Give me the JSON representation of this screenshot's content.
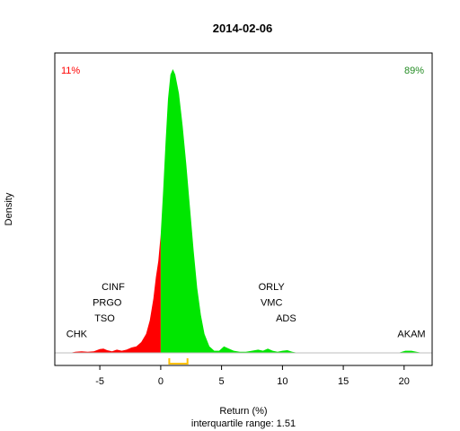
{
  "chart_data": {
    "type": "area",
    "title": "2014-02-06",
    "xlabel": "Return (%)",
    "ylabel": "Density",
    "subtitle": "interquartile range: 1.51",
    "xlim": [
      -8.7,
      22.3
    ],
    "ylim": [
      0,
      0.55
    ],
    "x_ticks": [
      -5,
      0,
      5,
      10,
      15,
      20
    ],
    "pct_negative": "11%",
    "pct_positive": "89%",
    "colors": {
      "negative": "#ff0000",
      "positive": "#00e600",
      "negative_label": "#ff0000",
      "positive_label": "#228b22",
      "iqr_bracket": "#ffc000",
      "baseline": "#bebebe"
    },
    "density": {
      "x": [
        -8.5,
        -7.5,
        -7.0,
        -6.5,
        -6.0,
        -5.5,
        -5.0,
        -4.7,
        -4.4,
        -4.0,
        -3.6,
        -3.2,
        -2.8,
        -2.4,
        -2.0,
        -1.6,
        -1.2,
        -0.9,
        -0.6,
        -0.4,
        -0.2,
        0.0,
        0.2,
        0.4,
        0.6,
        0.8,
        1.0,
        1.2,
        1.5,
        1.8,
        2.1,
        2.4,
        2.7,
        3.0,
        3.3,
        3.6,
        4.0,
        4.4,
        4.8,
        5.2,
        5.6,
        6.0,
        6.5,
        7.0,
        7.5,
        8.0,
        8.4,
        8.8,
        9.2,
        9.6,
        10.0,
        10.4,
        10.8,
        11.3,
        12.0,
        14.0,
        16.0,
        18.0,
        19.5,
        20.1,
        20.6,
        21.0,
        21.5,
        22.3
      ],
      "y": [
        0.0,
        0.0,
        0.002,
        0.003,
        0.002,
        0.003,
        0.007,
        0.008,
        0.005,
        0.003,
        0.006,
        0.004,
        0.006,
        0.01,
        0.012,
        0.02,
        0.035,
        0.06,
        0.1,
        0.14,
        0.17,
        0.22,
        0.3,
        0.39,
        0.47,
        0.515,
        0.525,
        0.515,
        0.48,
        0.42,
        0.35,
        0.27,
        0.19,
        0.12,
        0.07,
        0.035,
        0.012,
        0.004,
        0.004,
        0.012,
        0.008,
        0.004,
        0.002,
        0.002,
        0.004,
        0.006,
        0.004,
        0.008,
        0.004,
        0.002,
        0.004,
        0.005,
        0.002,
        0.0,
        0.0,
        0.0,
        0.0,
        0.0,
        0.0,
        0.004,
        0.004,
        0.002,
        0.0,
        0.0
      ]
    },
    "iqr": [
      0.7,
      2.2
    ],
    "annotations": [
      {
        "label": "CHK",
        "x": -6.9,
        "y": 0.029
      },
      {
        "label": "TSO",
        "x": -4.6,
        "y": 0.058
      },
      {
        "label": "PRGO",
        "x": -4.4,
        "y": 0.087
      },
      {
        "label": "CINF",
        "x": -3.9,
        "y": 0.116
      },
      {
        "label": "ORLY",
        "x": 9.1,
        "y": 0.116
      },
      {
        "label": "VMC",
        "x": 9.1,
        "y": 0.087
      },
      {
        "label": "ADS",
        "x": 10.3,
        "y": 0.058
      },
      {
        "label": "AKAM",
        "x": 20.6,
        "y": 0.029
      }
    ]
  }
}
